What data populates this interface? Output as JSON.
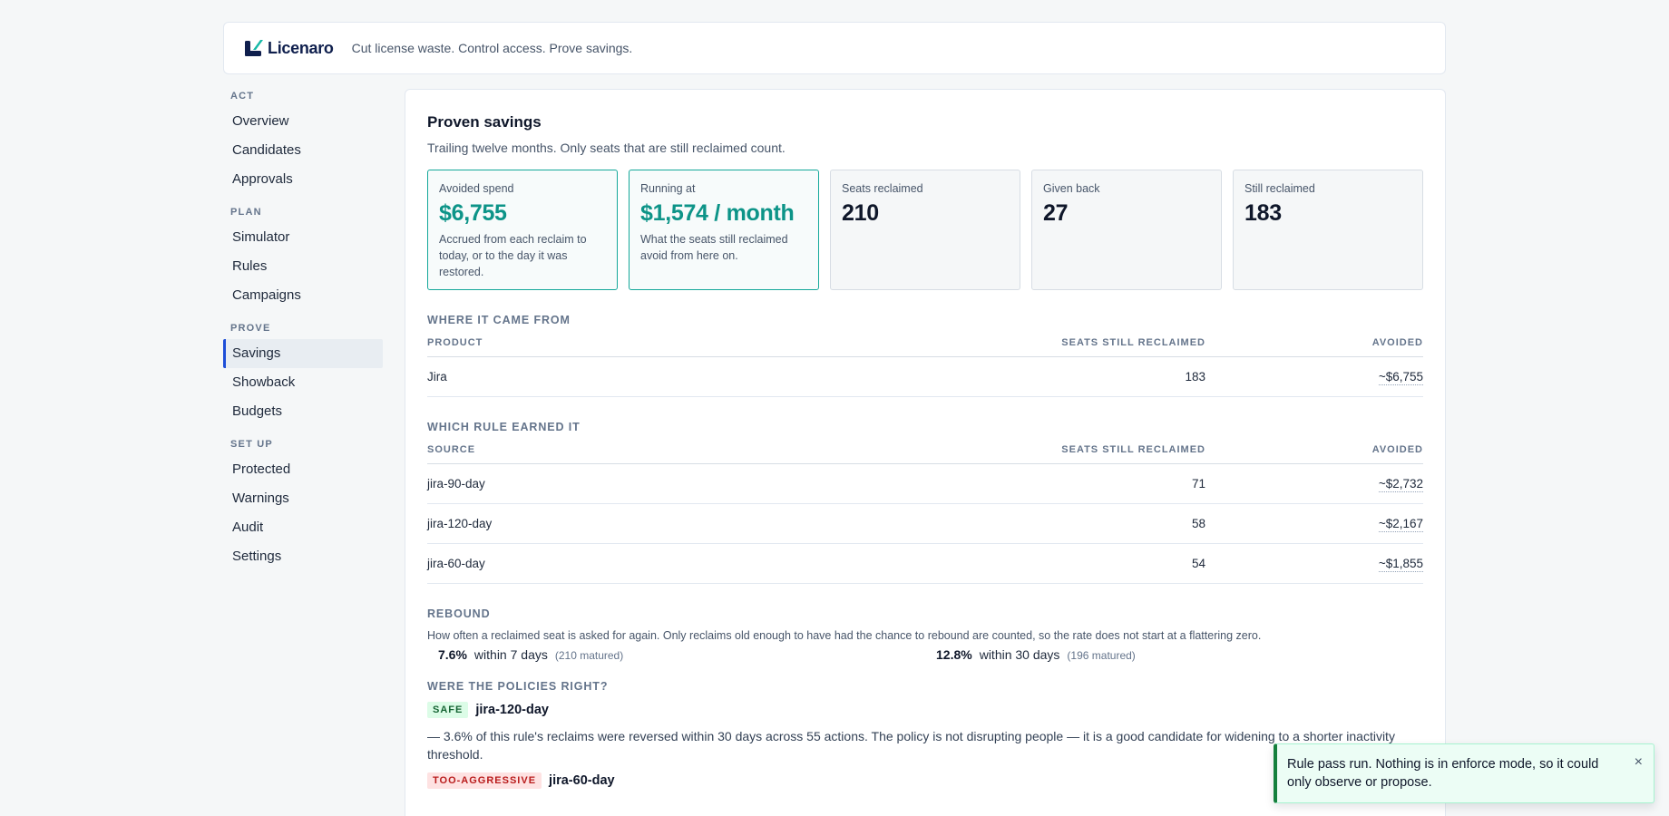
{
  "brand": {
    "name": "Licenaro",
    "tagline": "Cut license waste. Control access. Prove savings."
  },
  "sidebar": {
    "sections": [
      {
        "title": "ACT",
        "items": [
          "Overview",
          "Candidates",
          "Approvals"
        ]
      },
      {
        "title": "PLAN",
        "items": [
          "Simulator",
          "Rules",
          "Campaigns"
        ]
      },
      {
        "title": "PROVE",
        "items": [
          "Savings",
          "Showback",
          "Budgets"
        ]
      },
      {
        "title": "SET UP",
        "items": [
          "Protected",
          "Warnings",
          "Audit",
          "Settings"
        ]
      }
    ],
    "active": "Savings"
  },
  "main": {
    "title": "Proven savings",
    "subtitle": "Trailing twelve months. Only seats that are still reclaimed count.",
    "cards": [
      {
        "label": "Avoided spend",
        "value": "$6,755",
        "desc": "Accrued from each reclaim to today, or to the day it was restored."
      },
      {
        "label": "Running at",
        "value": "$1,574 / month",
        "desc": "What the seats still reclaimed avoid from here on."
      },
      {
        "label": "Seats reclaimed",
        "value": "210",
        "desc": ""
      },
      {
        "label": "Given back",
        "value": "27",
        "desc": ""
      },
      {
        "label": "Still reclaimed",
        "value": "183",
        "desc": ""
      }
    ],
    "where": {
      "title": "WHERE IT CAME FROM",
      "headers": [
        "PRODUCT",
        "SEATS STILL RECLAIMED",
        "AVOIDED"
      ],
      "rows": [
        {
          "name": "Jira",
          "seats": "183",
          "avoided": "~$6,755"
        }
      ]
    },
    "rules": {
      "title": "WHICH RULE EARNED IT",
      "headers": [
        "SOURCE",
        "SEATS STILL RECLAIMED",
        "AVOIDED"
      ],
      "rows": [
        {
          "name": "jira-90-day",
          "seats": "71",
          "avoided": "~$2,732"
        },
        {
          "name": "jira-120-day",
          "seats": "58",
          "avoided": "~$2,167"
        },
        {
          "name": "jira-60-day",
          "seats": "54",
          "avoided": "~$1,855"
        }
      ]
    },
    "rebound": {
      "title": "REBOUND",
      "desc": "How often a reclaimed seat is asked for again. Only reclaims old enough to have had the chance to rebound are counted, so the rate does not start at a flattering zero.",
      "stats": [
        {
          "pct": "7.6%",
          "within": "within 7 days",
          "matured": "(210 matured)"
        },
        {
          "pct": "12.8%",
          "within": "within 30 days",
          "matured": "(196 matured)"
        }
      ]
    },
    "policies": {
      "title": "WERE THE POLICIES RIGHT?",
      "items": [
        {
          "badge": "SAFE",
          "name": "jira-120-day",
          "text": "— 3.6% of this rule's reclaims were reversed within 30 days across 55 actions. The policy is not disrupting people — it is a good candidate for widening to a shorter inactivity threshold."
        },
        {
          "badge": "TOO-AGGRESSIVE",
          "name": "jira-60-day",
          "text": ""
        }
      ]
    }
  },
  "toast": {
    "message": "Rule pass run. Nothing is in enforce mode, so it could only observe or propose.",
    "close": "×"
  },
  "colors": {
    "accent": "#0d9488",
    "nav_active": "#1d4ed8",
    "safe": "#166534",
    "aggressive": "#b91c1c"
  }
}
